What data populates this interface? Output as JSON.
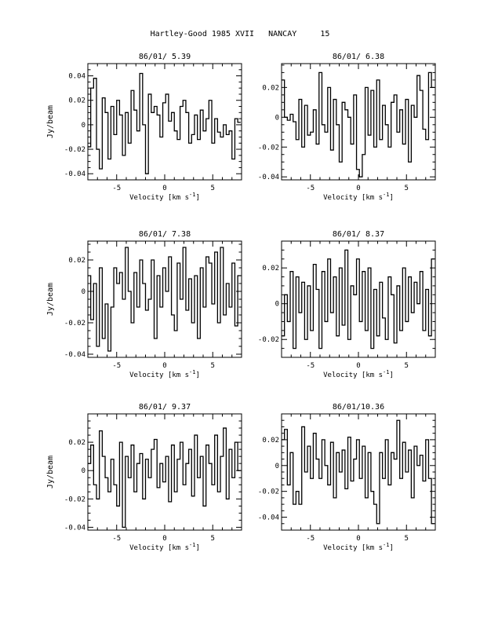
{
  "page_title": "Hartley-Good 1985 XVII   NANCAY     15",
  "colors": {
    "ink": "#000000",
    "background": "#ffffff"
  },
  "chart_data": [
    {
      "type": "line",
      "title": "86/01/ 5.39",
      "xlabel": "Velocity [km s",
      "xlabel_sup": "-1",
      "xlabel_end": "]",
      "ylabel": "Jy/beam",
      "xlim": [
        -8,
        8
      ],
      "ylim": [
        -0.045,
        0.05
      ],
      "xticks": [
        -5,
        0,
        5
      ],
      "yticks": [
        -0.04,
        -0.02,
        0,
        0.02,
        0.04
      ],
      "ytick_labels": [
        "-0.04",
        "-0.02",
        "0",
        "0.02",
        "0.04"
      ],
      "grid": false,
      "step": true,
      "x": [
        -8,
        -7.7,
        -7.4,
        -7.1,
        -6.8,
        -6.5,
        -6.2,
        -5.9,
        -5.6,
        -5.3,
        -5,
        -4.7,
        -4.4,
        -4.1,
        -3.8,
        -3.5,
        -3.2,
        -2.9,
        -2.6,
        -2.3,
        -2,
        -1.7,
        -1.4,
        -1.1,
        -0.8,
        -0.5,
        -0.2,
        0.1,
        0.4,
        0.7,
        1,
        1.3,
        1.6,
        1.9,
        2.2,
        2.5,
        2.8,
        3.1,
        3.4,
        3.7,
        4,
        4.3,
        4.6,
        4.9,
        5.2,
        5.5,
        5.8,
        6.1,
        6.4,
        6.7,
        7,
        7.3,
        7.6
      ],
      "y": [
        -0.018,
        0.03,
        0.038,
        -0.02,
        -0.036,
        0.022,
        0.01,
        -0.028,
        0.015,
        -0.008,
        0.02,
        0.008,
        -0.025,
        0.01,
        -0.015,
        0.028,
        0.012,
        -0.005,
        0.042,
        0.0,
        -0.04,
        0.025,
        0.01,
        0.015,
        0.008,
        -0.01,
        0.018,
        0.025,
        0.003,
        0.01,
        -0.005,
        -0.012,
        0.015,
        0.02,
        0.01,
        -0.015,
        -0.008,
        0.008,
        -0.012,
        0.012,
        -0.005,
        0.005,
        0.02,
        -0.015,
        0.005,
        -0.006,
        -0.01,
        0.0,
        -0.008,
        -0.005,
        -0.028,
        0.005,
        0.002
      ]
    },
    {
      "type": "line",
      "title": "86/01/ 6.38",
      "xlabel": "Velocity [km s",
      "xlabel_sup": "-1",
      "xlabel_end": "]",
      "ylabel": "",
      "xlim": [
        -8,
        8
      ],
      "ylim": [
        -0.042,
        0.036
      ],
      "xticks": [
        -5,
        0,
        5
      ],
      "yticks": [
        -0.04,
        -0.02,
        0,
        0.02
      ],
      "ytick_labels": [
        "-0.04",
        "-0.02",
        "0",
        "0.02"
      ],
      "grid": false,
      "step": true,
      "x": [
        -8,
        -7.7,
        -7.4,
        -7.1,
        -6.8,
        -6.5,
        -6.2,
        -5.9,
        -5.6,
        -5.3,
        -5,
        -4.7,
        -4.4,
        -4.1,
        -3.8,
        -3.5,
        -3.2,
        -2.9,
        -2.6,
        -2.3,
        -2,
        -1.7,
        -1.4,
        -1.1,
        -0.8,
        -0.5,
        -0.2,
        0.1,
        0.4,
        0.7,
        1,
        1.3,
        1.6,
        1.9,
        2.2,
        2.5,
        2.8,
        3.1,
        3.4,
        3.7,
        4,
        4.3,
        4.6,
        4.9,
        5.2,
        5.5,
        5.8,
        6.1,
        6.4,
        6.7,
        7,
        7.3,
        7.6
      ],
      "y": [
        0.025,
        0.0,
        -0.002,
        0.002,
        -0.003,
        -0.015,
        0.012,
        -0.02,
        0.008,
        -0.012,
        -0.01,
        0.005,
        -0.018,
        0.03,
        -0.005,
        -0.01,
        0.02,
        -0.022,
        0.012,
        -0.005,
        -0.03,
        0.01,
        0.005,
        0.0,
        -0.018,
        0.015,
        -0.035,
        -0.04,
        -0.025,
        0.02,
        -0.012,
        0.018,
        -0.02,
        0.025,
        -0.015,
        0.008,
        -0.005,
        -0.02,
        0.01,
        0.015,
        -0.01,
        0.005,
        -0.018,
        0.012,
        -0.03,
        0.008,
        0.0,
        0.028,
        0.018,
        -0.008,
        -0.015,
        0.03,
        0.02
      ]
    },
    {
      "type": "line",
      "title": "86/01/ 7.38",
      "xlabel": "Velocity [km s",
      "xlabel_sup": "-1",
      "xlabel_end": "]",
      "ylabel": "Jy/beam",
      "xlim": [
        -8,
        8
      ],
      "ylim": [
        -0.042,
        0.032
      ],
      "xticks": [
        -5,
        0,
        5
      ],
      "yticks": [
        -0.04,
        -0.02,
        0,
        0.02
      ],
      "ytick_labels": [
        "-0.04",
        "-0.02",
        "0",
        "0.02"
      ],
      "grid": false,
      "step": true,
      "x": [
        -8,
        -7.7,
        -7.4,
        -7.1,
        -6.8,
        -6.5,
        -6.2,
        -5.9,
        -5.6,
        -5.3,
        -5,
        -4.7,
        -4.4,
        -4.1,
        -3.8,
        -3.5,
        -3.2,
        -2.9,
        -2.6,
        -2.3,
        -2,
        -1.7,
        -1.4,
        -1.1,
        -0.8,
        -0.5,
        -0.2,
        0.1,
        0.4,
        0.7,
        1,
        1.3,
        1.6,
        1.9,
        2.2,
        2.5,
        2.8,
        3.1,
        3.4,
        3.7,
        4,
        4.3,
        4.6,
        4.9,
        5.2,
        5.5,
        5.8,
        6.1,
        6.4,
        6.7,
        7,
        7.3,
        7.6
      ],
      "y": [
        0.01,
        -0.018,
        0.005,
        -0.035,
        0.015,
        -0.03,
        -0.008,
        -0.038,
        -0.01,
        0.015,
        0.005,
        0.012,
        -0.005,
        0.028,
        0.0,
        -0.02,
        0.012,
        -0.01,
        0.02,
        0.005,
        -0.012,
        -0.005,
        0.02,
        -0.03,
        0.01,
        -0.01,
        0.015,
        0.0,
        0.022,
        -0.015,
        -0.025,
        0.018,
        -0.005,
        0.028,
        -0.012,
        0.008,
        -0.02,
        0.01,
        -0.03,
        0.015,
        -0.01,
        0.022,
        0.018,
        -0.008,
        0.025,
        -0.02,
        0.028,
        -0.015,
        0.005,
        -0.01,
        0.018,
        -0.022,
        0.01
      ]
    },
    {
      "type": "line",
      "title": "86/01/ 8.37",
      "xlabel": "Velocity [km s",
      "xlabel_sup": "-1",
      "xlabel_end": "]",
      "ylabel": "",
      "xlim": [
        -8,
        8
      ],
      "ylim": [
        -0.03,
        0.035
      ],
      "xticks": [
        -5,
        0,
        5
      ],
      "yticks": [
        -0.02,
        0,
        0.02
      ],
      "ytick_labels": [
        "-0.02",
        "0",
        "0.02"
      ],
      "grid": false,
      "step": true,
      "x": [
        -8,
        -7.7,
        -7.4,
        -7.1,
        -6.8,
        -6.5,
        -6.2,
        -5.9,
        -5.6,
        -5.3,
        -5,
        -4.7,
        -4.4,
        -4.1,
        -3.8,
        -3.5,
        -3.2,
        -2.9,
        -2.6,
        -2.3,
        -2,
        -1.7,
        -1.4,
        -1.1,
        -0.8,
        -0.5,
        -0.2,
        0.1,
        0.4,
        0.7,
        1,
        1.3,
        1.6,
        1.9,
        2.2,
        2.5,
        2.8,
        3.1,
        3.4,
        3.7,
        4,
        4.3,
        4.6,
        4.9,
        5.2,
        5.5,
        5.8,
        6.1,
        6.4,
        6.7,
        7,
        7.3,
        7.6
      ],
      "y": [
        -0.018,
        0.005,
        -0.01,
        0.018,
        -0.025,
        0.015,
        -0.005,
        0.012,
        -0.02,
        0.01,
        -0.015,
        0.022,
        0.008,
        -0.025,
        0.018,
        -0.01,
        0.025,
        -0.005,
        0.015,
        -0.018,
        0.02,
        -0.012,
        0.03,
        -0.02,
        0.01,
        0.005,
        0.025,
        -0.01,
        0.018,
        -0.015,
        0.02,
        -0.025,
        0.008,
        -0.018,
        0.012,
        -0.008,
        -0.02,
        0.015,
        0.005,
        -0.022,
        0.01,
        -0.015,
        0.02,
        -0.01,
        0.015,
        -0.005,
        0.012,
        0.0,
        0.018,
        -0.015,
        0.008,
        -0.018,
        0.025
      ]
    },
    {
      "type": "line",
      "title": "86/01/ 9.37",
      "xlabel": "Velocity [km s",
      "xlabel_sup": "-1",
      "xlabel_end": "]",
      "ylabel": "Jy/beam",
      "xlim": [
        -8,
        8
      ],
      "ylim": [
        -0.042,
        0.04
      ],
      "xticks": [
        -5,
        0,
        5
      ],
      "yticks": [
        -0.04,
        -0.02,
        0,
        0.02
      ],
      "ytick_labels": [
        "-0.04",
        "-0.02",
        "0",
        "0.02"
      ],
      "grid": false,
      "step": true,
      "x": [
        -8,
        -7.7,
        -7.4,
        -7.1,
        -6.8,
        -6.5,
        -6.2,
        -5.9,
        -5.6,
        -5.3,
        -5,
        -4.7,
        -4.4,
        -4.1,
        -3.8,
        -3.5,
        -3.2,
        -2.9,
        -2.6,
        -2.3,
        -2,
        -1.7,
        -1.4,
        -1.1,
        -0.8,
        -0.5,
        -0.2,
        0.1,
        0.4,
        0.7,
        1,
        1.3,
        1.6,
        1.9,
        2.2,
        2.5,
        2.8,
        3.1,
        3.4,
        3.7,
        4,
        4.3,
        4.6,
        4.9,
        5.2,
        5.5,
        5.8,
        6.1,
        6.4,
        6.7,
        7,
        7.3,
        7.6
      ],
      "y": [
        0.005,
        0.018,
        -0.01,
        -0.02,
        0.028,
        0.01,
        -0.005,
        -0.015,
        0.008,
        -0.01,
        -0.025,
        0.02,
        -0.04,
        0.01,
        -0.005,
        0.018,
        -0.015,
        0.005,
        0.012,
        -0.02,
        0.008,
        -0.005,
        0.015,
        0.022,
        -0.012,
        0.005,
        -0.008,
        0.01,
        -0.022,
        0.018,
        -0.015,
        0.008,
        0.02,
        -0.01,
        0.005,
        0.015,
        -0.018,
        0.025,
        -0.005,
        0.01,
        -0.025,
        0.018,
        0.005,
        -0.01,
        0.025,
        -0.015,
        0.01,
        0.03,
        -0.02,
        0.015,
        -0.005,
        0.02,
        0.0
      ]
    },
    {
      "type": "line",
      "title": "86/01/10.36",
      "xlabel": "Velocity [km s",
      "xlabel_sup": "-1",
      "xlabel_end": "]",
      "ylabel": "",
      "xlim": [
        -8,
        8
      ],
      "ylim": [
        -0.05,
        0.04
      ],
      "xticks": [
        -5,
        0,
        5
      ],
      "yticks": [
        -0.04,
        -0.02,
        0,
        0.02
      ],
      "ytick_labels": [
        "-0.04",
        "-0.02",
        "0",
        "0.02"
      ],
      "grid": false,
      "step": true,
      "x": [
        -8,
        -7.7,
        -7.4,
        -7.1,
        -6.8,
        -6.5,
        -6.2,
        -5.9,
        -5.6,
        -5.3,
        -5,
        -4.7,
        -4.4,
        -4.1,
        -3.8,
        -3.5,
        -3.2,
        -2.9,
        -2.6,
        -2.3,
        -2,
        -1.7,
        -1.4,
        -1.1,
        -0.8,
        -0.5,
        -0.2,
        0.1,
        0.4,
        0.7,
        1,
        1.3,
        1.6,
        1.9,
        2.2,
        2.5,
        2.8,
        3.1,
        3.4,
        3.7,
        4,
        4.3,
        4.6,
        4.9,
        5.2,
        5.5,
        5.8,
        6.1,
        6.4,
        6.7,
        7,
        7.3,
        7.6
      ],
      "y": [
        0.02,
        0.028,
        -0.015,
        0.01,
        -0.03,
        -0.02,
        -0.03,
        0.03,
        -0.005,
        0.015,
        -0.01,
        0.025,
        0.005,
        -0.01,
        0.02,
        0.0,
        -0.015,
        0.018,
        -0.025,
        0.01,
        -0.005,
        0.012,
        -0.018,
        0.022,
        -0.012,
        0.005,
        0.02,
        -0.01,
        0.015,
        -0.025,
        0.01,
        -0.02,
        -0.03,
        -0.045,
        0.01,
        -0.01,
        0.02,
        -0.015,
        0.01,
        0.005,
        0.035,
        -0.01,
        0.018,
        -0.005,
        0.012,
        -0.025,
        0.015,
        0.0,
        0.008,
        -0.012,
        0.02,
        -0.01,
        -0.045
      ]
    }
  ]
}
